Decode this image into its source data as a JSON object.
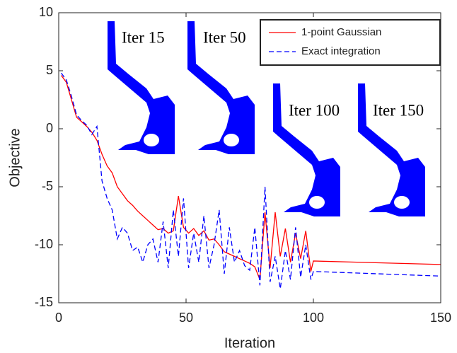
{
  "chart_data": {
    "type": "line",
    "x_label": "Iteration",
    "y_label": "Objective",
    "x": [
      1,
      3,
      5,
      7,
      9,
      11,
      13,
      15,
      17,
      19,
      21,
      23,
      25,
      27,
      29,
      31,
      33,
      35,
      37,
      39,
      41,
      43,
      45,
      47,
      49,
      51,
      53,
      55,
      57,
      59,
      61,
      63,
      65,
      67,
      69,
      71,
      73,
      75,
      77,
      79,
      81,
      83,
      85,
      87,
      89,
      91,
      93,
      95,
      97,
      99,
      100,
      150
    ],
    "series": [
      {
        "name": "1-point Gaussian",
        "color": "#ff0000",
        "dash": false,
        "values": [
          4.6,
          4.0,
          2.5,
          1.0,
          0.6,
          0.2,
          -0.3,
          -1.0,
          -2.2,
          -3.2,
          -3.8,
          -5.0,
          -5.6,
          -6.2,
          -6.6,
          -7.1,
          -7.5,
          -7.9,
          -8.3,
          -8.7,
          -8.6,
          -9.0,
          -8.8,
          -5.8,
          -8.5,
          -9.0,
          -8.6,
          -9.2,
          -8.8,
          -9.6,
          -9.5,
          -10.0,
          -10.6,
          -10.8,
          -11.0,
          -11.2,
          -11.4,
          -11.6,
          -11.9,
          -13.0,
          -7.2,
          -12.0,
          -7.2,
          -11.0,
          -8.6,
          -11.5,
          -9.0,
          -11.2,
          -8.8,
          -12.3,
          -11.4,
          -11.7
        ]
      },
      {
        "name": "Exact integration",
        "color": "#0000ff",
        "dash": true,
        "values": [
          4.8,
          4.2,
          2.8,
          1.2,
          0.7,
          0.3,
          -0.5,
          0.2,
          -4.5,
          -6.0,
          -7.0,
          -9.5,
          -8.5,
          -9.0,
          -10.5,
          -10.2,
          -11.5,
          -10.0,
          -9.5,
          -11.5,
          -8.0,
          -12.0,
          -7.0,
          -11.0,
          -6.0,
          -12.0,
          -9.0,
          -11.5,
          -7.5,
          -12.0,
          -10.0,
          -7.0,
          -12.5,
          -8.5,
          -11.5,
          -10.5,
          -11.8,
          -12.2,
          -8.5,
          -13.5,
          -5.0,
          -13.2,
          -11.0,
          -13.8,
          -10.5,
          -13.0,
          -8.5,
          -12.8,
          -10.0,
          -13.0,
          -12.3,
          -12.7
        ]
      }
    ],
    "xlim": [
      0,
      150
    ],
    "xticks": [
      0,
      50,
      100,
      150
    ],
    "ylim": [
      -15,
      10
    ],
    "yticks": [
      -15,
      -10,
      -5,
      0,
      5,
      10
    ],
    "grid": false,
    "legend": "top-right",
    "annotations": [
      "Iter 15",
      "Iter 50",
      "Iter 100",
      "Iter 150"
    ]
  }
}
